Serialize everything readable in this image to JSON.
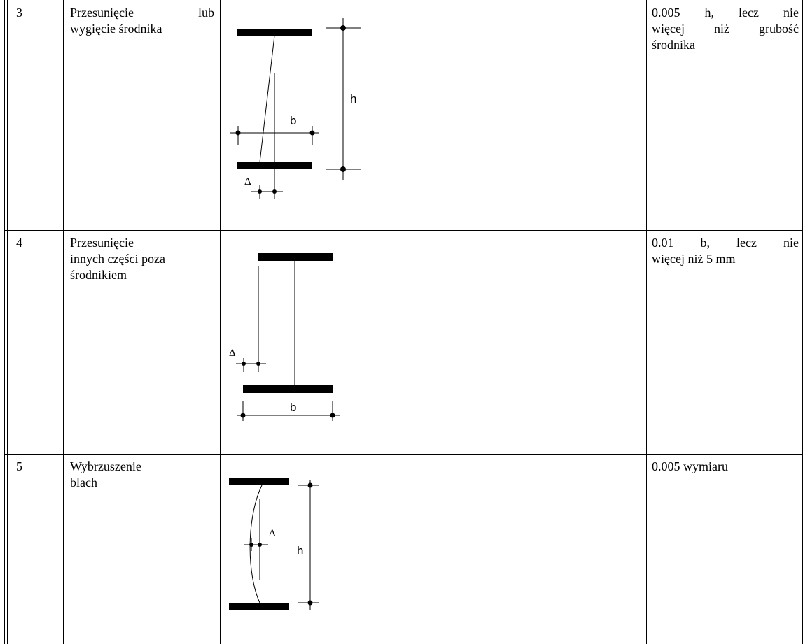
{
  "rows": [
    {
      "number": "3",
      "description_lines": [
        "Przesunięcie lub",
        "wygięcie środnika"
      ],
      "tolerance_lines": [
        "0.005 h, lecz nie",
        "więcej niż grubość",
        "środnika"
      ],
      "labels": {
        "h": "h",
        "b": "b",
        "delta": "Δ"
      }
    },
    {
      "number": "4",
      "description_lines": [
        "Przesunięcie",
        "innych części poza",
        "środnikiem"
      ],
      "tolerance_lines": [
        "0.01 b, lecz nie",
        "więcej niż 5 mm"
      ],
      "labels": {
        "b": "b",
        "delta": "Δ"
      }
    },
    {
      "number": "5",
      "description_lines": [
        "Wybrzuszenie",
        "blach"
      ],
      "tolerance_lines": [
        "0.005 wymiaru"
      ],
      "labels": {
        "h": "h",
        "delta": "Δ"
      }
    }
  ]
}
